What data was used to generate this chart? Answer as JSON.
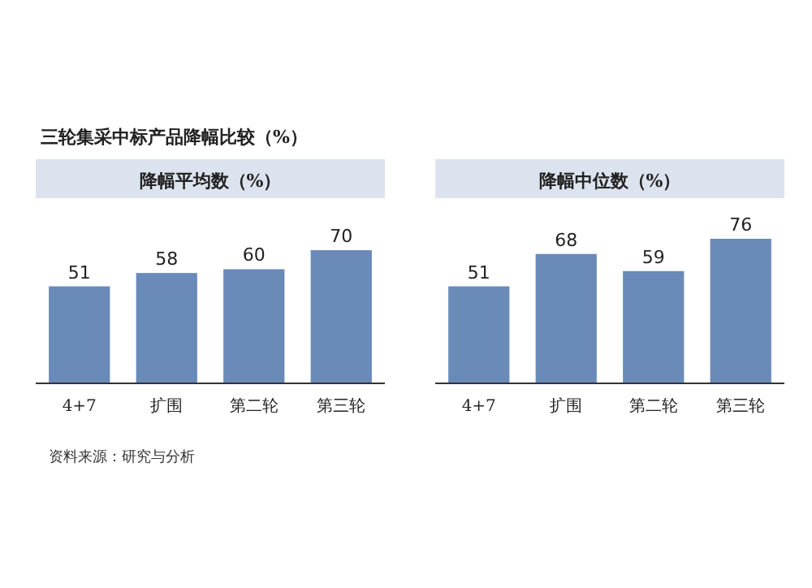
{
  "chart_data": [
    {
      "type": "bar",
      "title": "降幅平均数（%）",
      "categories": [
        "4+7",
        "扩围",
        "第二轮",
        "第三轮"
      ],
      "values": [
        51,
        58,
        60,
        70
      ],
      "color": "#6a8ab8",
      "data_labels": true,
      "annotations": [
        "三轮集采中标产品降幅比较（%）"
      ]
    },
    {
      "type": "bar",
      "title": "降幅中位数（%）",
      "categories": [
        "4+7",
        "扩围",
        "第二轮",
        "第三轮"
      ],
      "values": [
        51,
        68,
        59,
        76
      ],
      "color": "#6a8ab8",
      "data_labels": true,
      "annotations": [
        "资料来源：研究与分析"
      ]
    }
  ]
}
